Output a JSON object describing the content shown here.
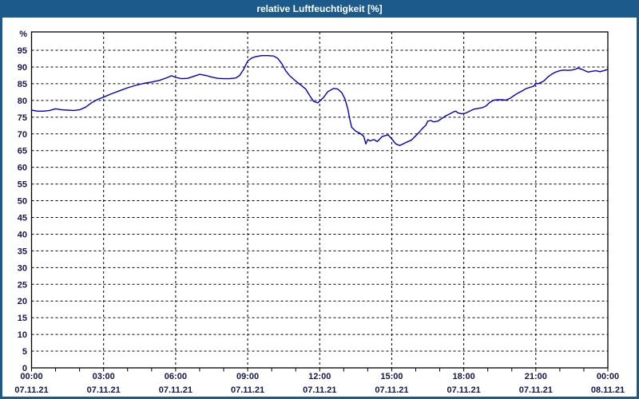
{
  "window": {
    "title": "relative Luftfeuchtigkeit [%]"
  },
  "colors": {
    "titlebar_bg": "#1c5a8c",
    "window_border": "#1c5a8c",
    "title_text": "#ffffff",
    "plot_bg": "#ffffff",
    "frame": "#000000",
    "grid": "#000000",
    "axis_text": "#151550",
    "line": "#0000cc"
  },
  "chart_data": {
    "type": "line",
    "title": "relative Luftfeuchtigkeit [%]",
    "ylabel": "%",
    "ylim": [
      0,
      101
    ],
    "y_ticks": [
      0,
      5,
      10,
      15,
      20,
      25,
      30,
      35,
      40,
      45,
      50,
      55,
      60,
      65,
      70,
      75,
      80,
      85,
      90,
      95
    ],
    "x_ticks": [
      {
        "time": "00:00",
        "date": "07.11.21",
        "hour": 0
      },
      {
        "time": "03:00",
        "date": "07.11.21",
        "hour": 3
      },
      {
        "time": "06:00",
        "date": "07.11.21",
        "hour": 6
      },
      {
        "time": "09:00",
        "date": "07.11.21",
        "hour": 9
      },
      {
        "time": "12:00",
        "date": "07.11.21",
        "hour": 12
      },
      {
        "time": "15:00",
        "date": "07.11.21",
        "hour": 15
      },
      {
        "time": "18:00",
        "date": "07.11.21",
        "hour": 18
      },
      {
        "time": "21:00",
        "date": "07.11.21",
        "hour": 21
      },
      {
        "time": "00:00",
        "date": "08.11.21",
        "hour": 24
      }
    ],
    "x_range_hours": [
      0,
      24
    ],
    "major_grid_interval_hours": 3,
    "minor_tick_interval_hours": 1,
    "grid": "dashed",
    "legend": "none",
    "series": [
      {
        "name": "relative Luftfeuchtigkeit",
        "unit": "%",
        "color": "#0000cc",
        "points": [
          [
            0.0,
            77.1
          ],
          [
            0.25,
            76.8
          ],
          [
            0.5,
            76.8
          ],
          [
            0.75,
            77.0
          ],
          [
            1.0,
            77.5
          ],
          [
            1.25,
            77.2
          ],
          [
            1.5,
            77.1
          ],
          [
            1.75,
            77.0
          ],
          [
            2.0,
            77.2
          ],
          [
            2.25,
            78.0
          ],
          [
            2.5,
            79.3
          ],
          [
            2.75,
            80.3
          ],
          [
            3.0,
            81.0
          ],
          [
            3.33,
            82.0
          ],
          [
            3.67,
            82.9
          ],
          [
            4.0,
            83.8
          ],
          [
            4.33,
            84.5
          ],
          [
            4.67,
            85.1
          ],
          [
            5.0,
            85.5
          ],
          [
            5.33,
            86.0
          ],
          [
            5.67,
            86.9
          ],
          [
            5.83,
            87.4
          ],
          [
            6.0,
            86.9
          ],
          [
            6.25,
            86.5
          ],
          [
            6.5,
            86.6
          ],
          [
            6.75,
            87.2
          ],
          [
            7.0,
            87.8
          ],
          [
            7.25,
            87.5
          ],
          [
            7.5,
            87.0
          ],
          [
            7.75,
            86.6
          ],
          [
            8.0,
            86.5
          ],
          [
            8.25,
            86.5
          ],
          [
            8.5,
            86.7
          ],
          [
            8.67,
            87.5
          ],
          [
            8.83,
            89.3
          ],
          [
            9.0,
            91.8
          ],
          [
            9.17,
            92.7
          ],
          [
            9.33,
            93.1
          ],
          [
            9.58,
            93.4
          ],
          [
            9.83,
            93.4
          ],
          [
            10.08,
            93.3
          ],
          [
            10.25,
            92.6
          ],
          [
            10.42,
            91.0
          ],
          [
            10.58,
            88.9
          ],
          [
            10.75,
            87.4
          ],
          [
            11.0,
            85.8
          ],
          [
            11.25,
            84.4
          ],
          [
            11.42,
            83.4
          ],
          [
            11.58,
            81.5
          ],
          [
            11.75,
            79.7
          ],
          [
            11.92,
            79.3
          ],
          [
            12.0,
            79.8
          ],
          [
            12.17,
            81.0
          ],
          [
            12.33,
            82.6
          ],
          [
            12.58,
            83.6
          ],
          [
            12.75,
            83.4
          ],
          [
            12.92,
            82.3
          ],
          [
            13.05,
            80.5
          ],
          [
            13.17,
            77.5
          ],
          [
            13.25,
            74.5
          ],
          [
            13.33,
            72.0
          ],
          [
            13.5,
            70.8
          ],
          [
            13.67,
            70.2
          ],
          [
            13.83,
            69.3
          ],
          [
            14.0,
            68.3
          ],
          [
            13.92,
            67.0
          ],
          [
            14.1,
            67.9
          ],
          [
            14.25,
            68.3
          ],
          [
            14.4,
            67.7
          ],
          [
            14.6,
            69.2
          ],
          [
            14.85,
            69.7
          ],
          [
            15.0,
            68.5
          ],
          [
            15.17,
            67.0
          ],
          [
            15.33,
            66.5
          ],
          [
            15.58,
            67.4
          ],
          [
            15.83,
            68.2
          ],
          [
            16.08,
            70.0
          ],
          [
            16.25,
            71.4
          ],
          [
            16.42,
            72.6
          ],
          [
            16.5,
            73.8
          ],
          [
            16.63,
            74.0
          ],
          [
            16.75,
            73.6
          ],
          [
            16.92,
            73.8
          ],
          [
            17.08,
            74.6
          ],
          [
            17.25,
            75.4
          ],
          [
            17.42,
            76.0
          ],
          [
            17.58,
            76.6
          ],
          [
            17.67,
            76.8
          ],
          [
            17.75,
            76.3
          ],
          [
            17.92,
            76.0
          ],
          [
            18.08,
            76.2
          ],
          [
            18.25,
            76.8
          ],
          [
            18.42,
            77.4
          ],
          [
            18.58,
            77.6
          ],
          [
            18.75,
            77.8
          ],
          [
            18.92,
            78.3
          ],
          [
            19.08,
            79.4
          ],
          [
            19.25,
            80.1
          ],
          [
            19.42,
            80.2
          ],
          [
            19.58,
            80.2
          ],
          [
            19.75,
            80.1
          ],
          [
            19.92,
            80.6
          ],
          [
            20.08,
            81.4
          ],
          [
            20.25,
            82.2
          ],
          [
            20.42,
            82.8
          ],
          [
            20.58,
            83.5
          ],
          [
            20.75,
            83.9
          ],
          [
            20.92,
            84.3
          ],
          [
            21.0,
            85.2
          ],
          [
            21.1,
            85.0
          ],
          [
            21.33,
            85.8
          ],
          [
            21.5,
            87.0
          ],
          [
            21.67,
            87.9
          ],
          [
            21.83,
            88.5
          ],
          [
            22.0,
            88.9
          ],
          [
            22.17,
            89.1
          ],
          [
            22.33,
            89.0
          ],
          [
            22.5,
            89.1
          ],
          [
            22.67,
            89.4
          ],
          [
            22.75,
            89.7
          ],
          [
            22.92,
            89.3
          ],
          [
            23.08,
            88.8
          ],
          [
            23.17,
            88.5
          ],
          [
            23.33,
            88.7
          ],
          [
            23.5,
            88.9
          ],
          [
            23.67,
            88.6
          ],
          [
            23.83,
            88.9
          ],
          [
            24.0,
            89.3
          ]
        ]
      }
    ]
  }
}
